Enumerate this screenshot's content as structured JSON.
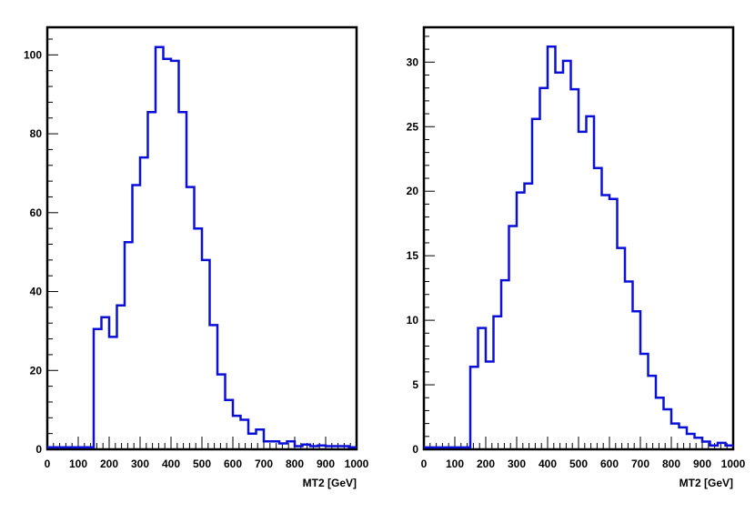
{
  "chart_data": [
    {
      "type": "histogram",
      "title": "",
      "xlabel": "MT2 [GeV]",
      "ylabel": "",
      "xlim": [
        0,
        1000
      ],
      "ylim": [
        0,
        107
      ],
      "x_ticks": [
        "0",
        "100",
        "200",
        "300",
        "400",
        "500",
        "600",
        "700",
        "800",
        "900",
        "1000"
      ],
      "y_ticks": [
        "0",
        "20",
        "40",
        "60",
        "80",
        "100"
      ],
      "y_tick_values": [
        0,
        20,
        40,
        60,
        80,
        100
      ],
      "bin_width": 25,
      "bin_edges_start": 0,
      "values": [
        0.5,
        0.5,
        0.5,
        0.5,
        0.5,
        0.5,
        30.5,
        33.5,
        28.5,
        36.5,
        52.5,
        67,
        74,
        85.5,
        102,
        99,
        98.5,
        85.5,
        66.5,
        56,
        48,
        31.5,
        19,
        12.5,
        8.5,
        7.5,
        4,
        5,
        2,
        2,
        1.5,
        2,
        0.8,
        1.2,
        0.8,
        1,
        0.8,
        0.8,
        0.8,
        0.5
      ],
      "line_color": "#0a10d8",
      "grid": false,
      "legend": "none"
    },
    {
      "type": "histogram",
      "title": "",
      "xlabel": "MT2 [GeV]",
      "ylabel": "",
      "xlim": [
        0,
        1000
      ],
      "ylim": [
        0,
        32.7
      ],
      "x_ticks": [
        "0",
        "100",
        "200",
        "300",
        "400",
        "500",
        "600",
        "700",
        "800",
        "900",
        "1000"
      ],
      "y_ticks": [
        "0",
        "5",
        "10",
        "15",
        "20",
        "25",
        "30"
      ],
      "y_tick_values": [
        0,
        5,
        10,
        15,
        20,
        25,
        30
      ],
      "bin_width": 25,
      "bin_edges_start": 0,
      "values": [
        0.15,
        0.15,
        0.15,
        0.15,
        0.15,
        0.15,
        6.4,
        9.4,
        6.8,
        10.3,
        13.1,
        17.3,
        19.9,
        20.6,
        25.6,
        28,
        31.2,
        29.2,
        30.1,
        27.9,
        24.6,
        25.8,
        21.8,
        19.7,
        19.4,
        15.6,
        13,
        10.7,
        7.4,
        5.7,
        4,
        3.1,
        2,
        1.7,
        1.2,
        0.9,
        0.6,
        0.3,
        0.5,
        0.3
      ],
      "line_color": "#0a10d8",
      "grid": false,
      "legend": "none"
    }
  ]
}
